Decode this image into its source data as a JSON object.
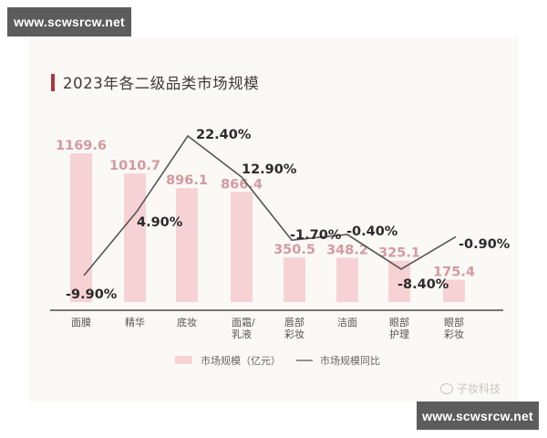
{
  "watermarks": {
    "top": "www.scwsrcw.net",
    "bottom": "www.scwsrcw.net"
  },
  "source": {
    "icon": "weibo-icon",
    "label": "子妆科技"
  },
  "colors": {
    "bar": "#f7d2d4",
    "bar_label": "#d4999f",
    "line": "#555555",
    "title_accent": "#a8383d",
    "panel_bg": "#fbf9f5"
  },
  "chart_data": {
    "type": "bar+line",
    "title": "2023年各二级品类市场规模",
    "categories": [
      "面膜",
      "精华",
      "底妆",
      "面霜/乳液",
      "唇部彩妆",
      "洁面",
      "眼部护理",
      "眼部彩妆"
    ],
    "category_lines": [
      [
        "面膜"
      ],
      [
        "精华"
      ],
      [
        "底妆"
      ],
      [
        "面霜/",
        "乳液"
      ],
      [
        "唇部",
        "彩妆"
      ],
      [
        "洁面"
      ],
      [
        "眼部",
        "护理"
      ],
      [
        "眼部",
        "彩妆"
      ]
    ],
    "series": [
      {
        "name": "市场规模（亿元）",
        "type": "bar",
        "values": [
          1169.6,
          1010.7,
          896.1,
          866.4,
          350.5,
          348.2,
          325.1,
          175.4
        ],
        "labels": [
          "1169.6",
          "1010.7",
          "896.1",
          "866.4",
          "350.5",
          "348.2",
          "325.1",
          "175.4"
        ]
      },
      {
        "name": "市场规模同比",
        "type": "line",
        "values": [
          -9.9,
          4.9,
          22.4,
          12.9,
          -1.7,
          -0.4,
          -8.4,
          -0.9
        ],
        "labels": [
          "-9.90%",
          "4.90%",
          "22.40%",
          "12.90%",
          "-1.70%",
          "-0.40%",
          "-8.40%",
          "-0.90%"
        ]
      }
    ],
    "xlabel": "",
    "ylabel": "",
    "grid": false,
    "legend_position": "bottom"
  },
  "legend": {
    "bar_label": "市场规模（亿元）",
    "line_label": "市场规模同比"
  }
}
